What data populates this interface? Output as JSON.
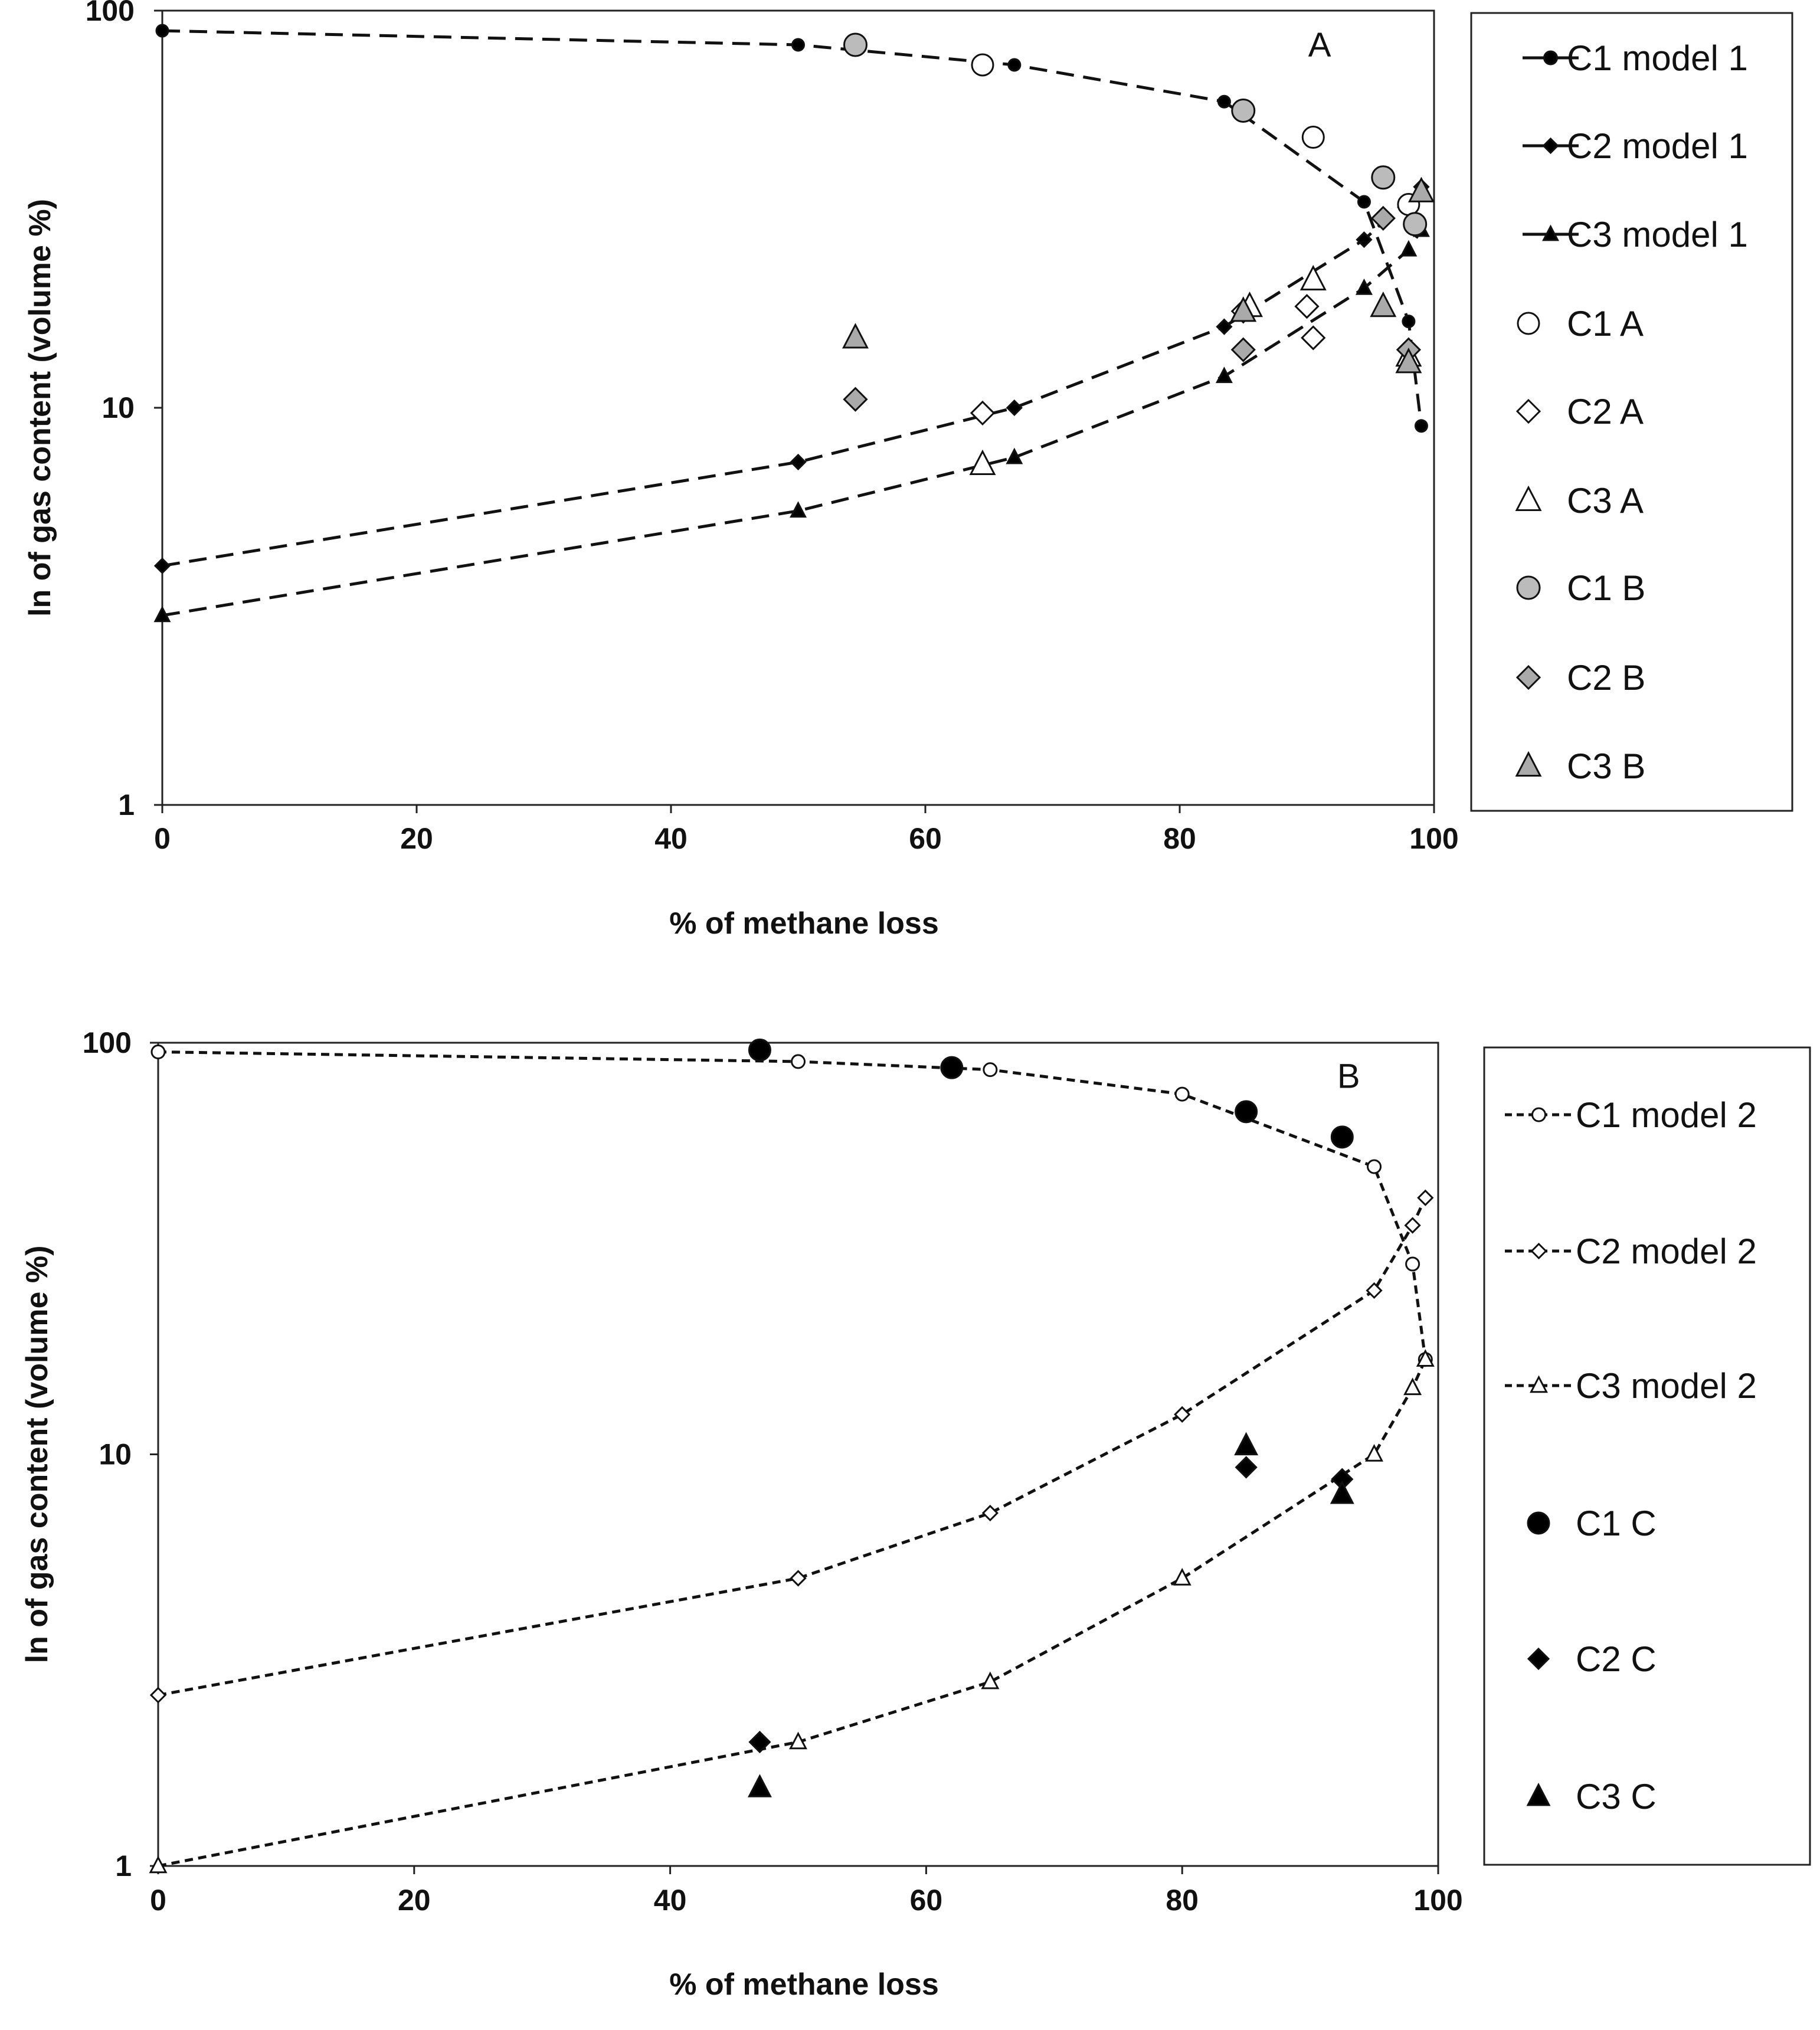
{
  "chart_data": [
    {
      "type": "scatter",
      "panel": "A",
      "xlabel": "% of methane loss",
      "ylabel": "ln of gas content (volume %)",
      "xlim": [
        0,
        100
      ],
      "ylim": [
        1,
        100
      ],
      "yscale": "log",
      "xticks": [
        0,
        20,
        40,
        60,
        80,
        100
      ],
      "yticks": [
        1,
        10,
        100
      ],
      "grid": false,
      "legend_position": "right",
      "series": [
        {
          "name": "C1 model 1",
          "kind": "line-marker",
          "dash": "long",
          "marker": "circle",
          "fill": "#000000",
          "msize": 10,
          "points": [
            [
              0,
              89
            ],
            [
              50,
              82
            ],
            [
              67,
              73
            ],
            [
              83.5,
              59
            ],
            [
              94.5,
              33
            ],
            [
              98,
              16.5
            ],
            [
              99,
              9
            ]
          ]
        },
        {
          "name": "C2 model 1",
          "kind": "line-marker",
          "dash": "long",
          "marker": "diamond",
          "fill": "#000000",
          "msize": 12,
          "points": [
            [
              0,
              4
            ],
            [
              50,
              7.3
            ],
            [
              67,
              10
            ],
            [
              83.5,
              16
            ],
            [
              94.5,
              26.5
            ],
            [
              99,
              36
            ]
          ]
        },
        {
          "name": "C3 model 1",
          "kind": "line-marker",
          "dash": "long",
          "marker": "triangle",
          "fill": "#000000",
          "msize": 12,
          "points": [
            [
              0,
              3
            ],
            [
              50,
              5.5
            ],
            [
              67,
              7.5
            ],
            [
              83.5,
              12
            ],
            [
              94.5,
              20
            ],
            [
              98,
              25
            ],
            [
              99,
              28
            ]
          ]
        },
        {
          "name": "C1 A",
          "kind": "marker",
          "marker": "circle",
          "fill": "#ffffff",
          "msize": 18,
          "points": [
            [
              64.5,
              73
            ],
            [
              90.5,
              48
            ],
            [
              98,
              32.5
            ]
          ]
        },
        {
          "name": "C2 A",
          "kind": "marker",
          "marker": "diamond",
          "fill": "#ffffff",
          "msize": 19,
          "points": [
            [
              64.5,
              9.7
            ],
            [
              90,
              18
            ],
            [
              90.5,
              15
            ],
            [
              85,
              17.5
            ]
          ]
        },
        {
          "name": "C3 A",
          "kind": "marker",
          "marker": "triangle",
          "fill": "#ffffff",
          "msize": 20,
          "points": [
            [
              64.5,
              7.2
            ],
            [
              90.5,
              21
            ],
            [
              85.5,
              18
            ],
            [
              98,
              13.5
            ]
          ]
        },
        {
          "name": "C1 B",
          "kind": "marker",
          "marker": "circle",
          "fill": "#bbbbbb",
          "msize": 19,
          "points": [
            [
              54.5,
              82
            ],
            [
              85,
              56
            ],
            [
              96,
              38
            ],
            [
              98.5,
              29
            ]
          ]
        },
        {
          "name": "C2 B",
          "kind": "marker",
          "marker": "diamond",
          "fill": "#aaaaaa",
          "msize": 19,
          "points": [
            [
              54.5,
              10.5
            ],
            [
              85,
              14
            ],
            [
              96,
              30
            ],
            [
              98,
              14
            ]
          ]
        },
        {
          "name": "C3 B",
          "kind": "marker",
          "marker": "triangle",
          "fill": "#aaaaaa",
          "msize": 20,
          "points": [
            [
              54.5,
              15
            ],
            [
              85,
              17.5
            ],
            [
              96,
              18
            ],
            [
              98,
              13
            ],
            [
              99,
              35
            ]
          ]
        }
      ],
      "annotations": [
        {
          "text": "A",
          "x": 91,
          "y": 82
        }
      ]
    },
    {
      "type": "scatter",
      "panel": "B",
      "xlabel": "% of methane loss",
      "ylabel": "ln of gas content (volume %)",
      "xlim": [
        0,
        100
      ],
      "ylim": [
        1,
        100
      ],
      "yscale": "log",
      "xticks": [
        0,
        20,
        40,
        60,
        80,
        100
      ],
      "yticks": [
        1,
        10,
        100
      ],
      "grid": false,
      "legend_position": "right",
      "series": [
        {
          "name": "C1 model 2",
          "kind": "line-marker",
          "dash": "short",
          "marker": "circle",
          "fill": "#ffffff",
          "msize": 11,
          "points": [
            [
              0,
              95
            ],
            [
              50,
              90
            ],
            [
              65,
              86
            ],
            [
              80,
              75
            ],
            [
              95,
              50
            ],
            [
              98,
              29
            ],
            [
              99,
              17
            ]
          ]
        },
        {
          "name": "C2 model 2",
          "kind": "line-marker",
          "dash": "short",
          "marker": "diamond",
          "fill": "#ffffff",
          "msize": 12,
          "points": [
            [
              0,
              2.6
            ],
            [
              50,
              5
            ],
            [
              65,
              7.2
            ],
            [
              80,
              12.5
            ],
            [
              95,
              25
            ],
            [
              98,
              36
            ],
            [
              99,
              42
            ]
          ]
        },
        {
          "name": "C3 model 2",
          "kind": "line-marker",
          "dash": "short",
          "marker": "triangle",
          "fill": "#ffffff",
          "msize": 13,
          "points": [
            [
              0,
              1
            ],
            [
              50,
              2
            ],
            [
              65,
              2.8
            ],
            [
              80,
              5
            ],
            [
              95,
              10
            ],
            [
              98,
              14.5
            ],
            [
              99,
              17
            ]
          ]
        },
        {
          "name": "C1 C",
          "kind": "marker",
          "marker": "circle",
          "fill": "#000000",
          "msize": 18,
          "points": [
            [
              47,
              96
            ],
            [
              62,
              87
            ],
            [
              85,
              68
            ],
            [
              92.5,
              59
            ]
          ]
        },
        {
          "name": "C2 C",
          "kind": "marker",
          "marker": "diamond",
          "fill": "#000000",
          "msize": 17,
          "points": [
            [
              47,
              2
            ],
            [
              85,
              9.3
            ],
            [
              92.5,
              8.7
            ]
          ]
        },
        {
          "name": "C3 C",
          "kind": "marker",
          "marker": "triangle",
          "fill": "#000000",
          "msize": 18,
          "points": [
            [
              47,
              1.55
            ],
            [
              85,
              10.5
            ],
            [
              92.5,
              8
            ]
          ]
        }
      ],
      "annotations": [
        {
          "text": "B",
          "x": 93,
          "y": 83
        }
      ]
    }
  ]
}
